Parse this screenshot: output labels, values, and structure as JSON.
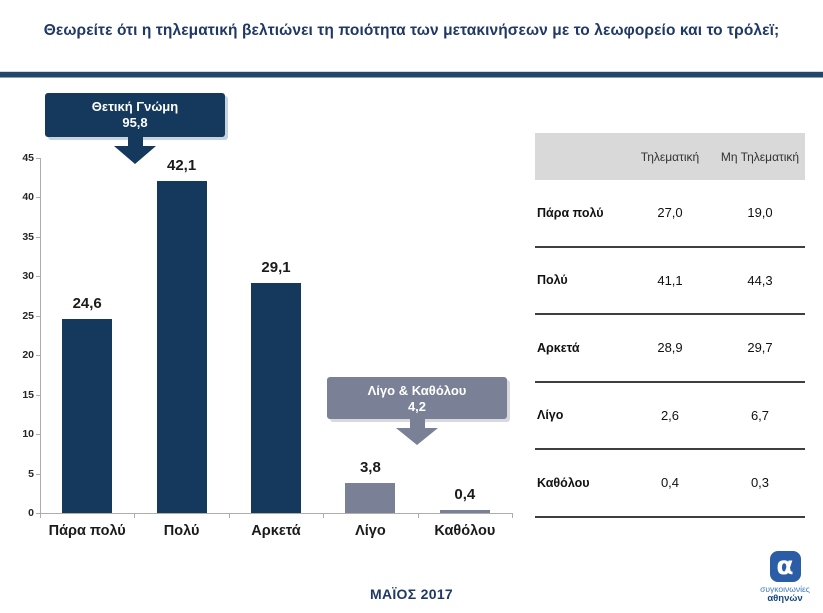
{
  "title": "Θεωρείτε ότι η τηλεματική βελτιώνει τη ποιότητα των μετακινήσεων με το λεωφορείο και το τρόλεϊ;",
  "colors": {
    "navy": "#14395D",
    "gray": "#7A8095",
    "title_navy": "#1F3864",
    "table_header_bg": "#D9D9D9",
    "axis": "#ADADAD"
  },
  "chart_data": {
    "type": "bar",
    "categories": [
      "Πάρα πολύ",
      "Πολύ",
      "Αρκετά",
      "Λίγο",
      "Καθόλου"
    ],
    "values": [
      24.6,
      42.1,
      29.1,
      3.8,
      0.4
    ],
    "value_labels": [
      "24,6",
      "42,1",
      "29,1",
      "3,8",
      "0,4"
    ],
    "bar_color_keys": [
      "navy",
      "navy",
      "navy",
      "gray",
      "gray"
    ],
    "ylim": [
      0,
      45
    ],
    "yticks": [
      0,
      5,
      10,
      15,
      20,
      25,
      30,
      35,
      40,
      45
    ],
    "grid": false,
    "legend": "none",
    "annotations": [
      {
        "label": "Θετική Γνώμη",
        "value": "95,8",
        "color_key": "navy",
        "points_to": [
          "Πάρα πολύ",
          "Πολύ",
          "Αρκετά"
        ]
      },
      {
        "label": "Λίγο & Καθόλου",
        "value": "4,2",
        "color_key": "gray",
        "points_to": [
          "Λίγο",
          "Καθόλου"
        ]
      }
    ]
  },
  "table": {
    "columns": [
      "Τηλεματική",
      "Μη Τηλεματική"
    ],
    "rows": [
      {
        "label": "Πάρα πολύ",
        "values": [
          "27,0",
          "19,0"
        ]
      },
      {
        "label": "Πολύ",
        "values": [
          "41,1",
          "44,3"
        ]
      },
      {
        "label": "Αρκετά",
        "values": [
          "28,9",
          "29,7"
        ]
      },
      {
        "label": "Λίγο",
        "values": [
          "2,6",
          "6,7"
        ]
      },
      {
        "label": "Καθόλου",
        "values": [
          "0,4",
          "0,3"
        ]
      }
    ]
  },
  "footer": {
    "date": "ΜΑΪΟΣ 2017",
    "logo_letter": "α",
    "logo_line1": "συγκοινωνίες",
    "logo_line2": "αθηνών"
  }
}
